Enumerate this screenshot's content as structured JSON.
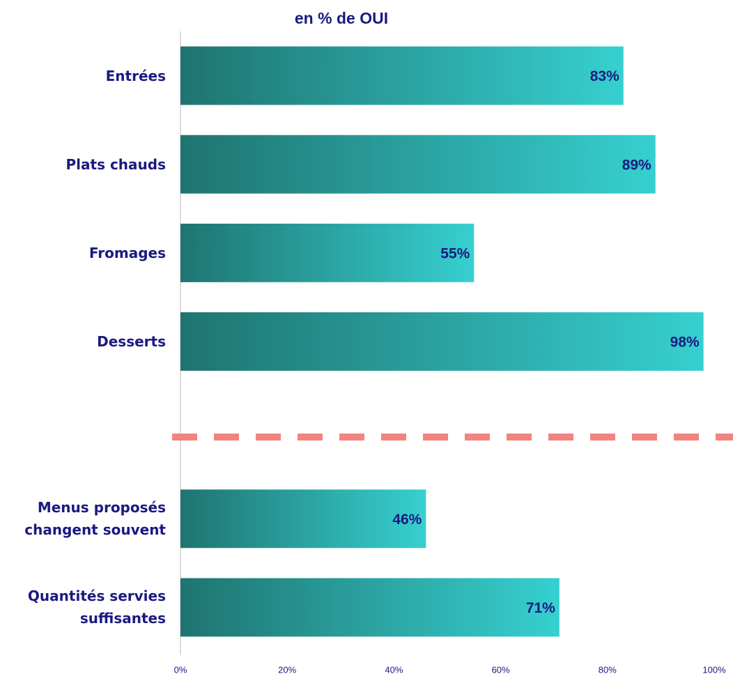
{
  "chart_data": {
    "type": "barh",
    "title": "en % de OUI",
    "categories": [
      "Entrées",
      "Plats chauds",
      "Fromages",
      "Desserts",
      null,
      "Menus proposés\nchangent souvent",
      "Quantités servies\nsuffisantes"
    ],
    "values": [
      83,
      89,
      55,
      98,
      null,
      46,
      71
    ],
    "value_labels": [
      "83%",
      "89%",
      "55%",
      "98%",
      null,
      "46%",
      "71%"
    ],
    "colors": [
      "#1f7470",
      "#36d0d0"
    ],
    "xlim": [
      0,
      100
    ],
    "xticks": [
      {
        "value": 0,
        "label": "0%"
      },
      {
        "value": 20,
        "label": "20%"
      },
      {
        "value": 40,
        "label": "40%"
      },
      {
        "value": 60,
        "label": "60%"
      },
      {
        "value": 80,
        "label": "80%"
      },
      {
        "value": 100,
        "label": "100%"
      }
    ],
    "grid": false
  }
}
